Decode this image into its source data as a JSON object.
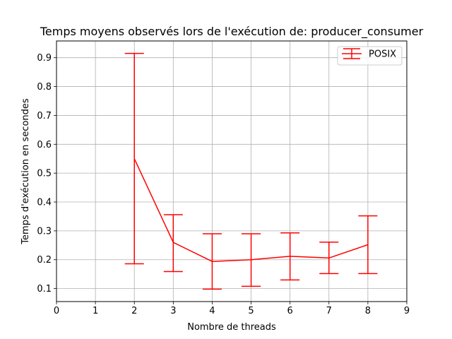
{
  "chart_data": {
    "type": "line",
    "title": "Temps moyens observés lors de l'exécution de: producer_consumer",
    "xlabel": "Nombre de threads",
    "ylabel": "Temps d'exécution en secondes",
    "xlim": [
      0,
      9
    ],
    "ylim": [
      0.055,
      0.958
    ],
    "xticks": [
      "0",
      "1",
      "2",
      "3",
      "4",
      "5",
      "6",
      "7",
      "8",
      "9"
    ],
    "yticks": [
      "0.1",
      "0.2",
      "0.3",
      "0.4",
      "0.5",
      "0.6",
      "0.7",
      "0.8",
      "0.9"
    ],
    "grid": true,
    "legend_position": "top-right",
    "series": [
      {
        "name": "POSIX",
        "color": "#ff0000",
        "x": [
          2,
          3,
          4,
          5,
          6,
          7,
          8
        ],
        "y": [
          0.55,
          0.26,
          0.194,
          0.2,
          0.212,
          0.206,
          0.252
        ],
        "err_low": [
          0.186,
          0.159,
          0.098,
          0.108,
          0.13,
          0.152,
          0.152
        ],
        "err_high": [
          0.915,
          0.356,
          0.29,
          0.29,
          0.293,
          0.261,
          0.352
        ]
      }
    ]
  }
}
